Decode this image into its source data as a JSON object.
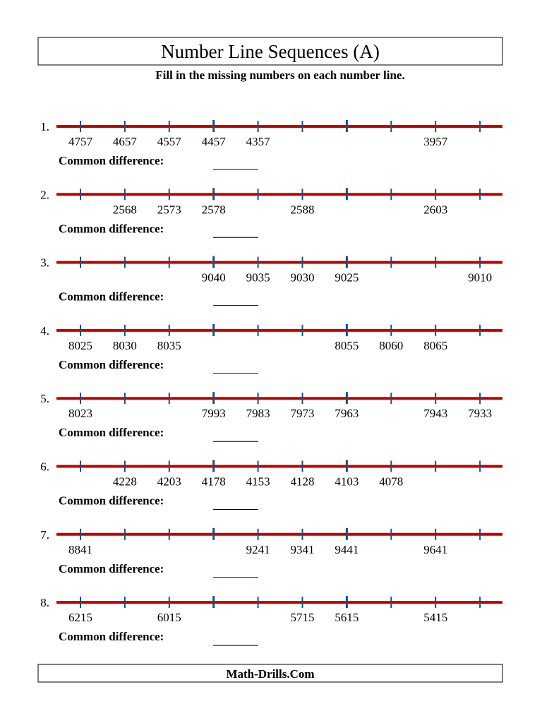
{
  "header": {
    "title": "Number Line Sequences (A)",
    "subtitle": "Fill in the missing numbers on each number line."
  },
  "problems": [
    {
      "number": "1.",
      "values": [
        4757,
        4657,
        4557,
        4457,
        4357,
        null,
        null,
        null,
        3957,
        null
      ],
      "label": "Common difference:"
    },
    {
      "number": "2.",
      "values": [
        null,
        2568,
        2573,
        2578,
        null,
        2588,
        null,
        null,
        2603,
        null
      ],
      "label": "Common difference:"
    },
    {
      "number": "3.",
      "values": [
        null,
        null,
        null,
        9040,
        9035,
        9030,
        9025,
        null,
        null,
        9010
      ],
      "label": "Common difference:"
    },
    {
      "number": "4.",
      "values": [
        8025,
        8030,
        8035,
        null,
        null,
        null,
        8055,
        8060,
        8065,
        null
      ],
      "label": "Common difference:"
    },
    {
      "number": "5.",
      "values": [
        8023,
        null,
        null,
        7993,
        7983,
        7973,
        7963,
        null,
        7943,
        7933
      ],
      "label": "Common difference:"
    },
    {
      "number": "6.",
      "values": [
        null,
        4228,
        4203,
        4178,
        4153,
        4128,
        4103,
        4078,
        null,
        null
      ],
      "label": "Common difference:"
    },
    {
      "number": "7.",
      "values": [
        8841,
        null,
        null,
        null,
        9241,
        9341,
        9441,
        null,
        9641,
        null
      ],
      "label": "Common difference:"
    },
    {
      "number": "8.",
      "values": [
        6215,
        null,
        6015,
        null,
        null,
        5715,
        5615,
        null,
        5415,
        null
      ],
      "label": "Common difference:"
    }
  ],
  "footer": {
    "text": "Math-Drills.Com"
  }
}
